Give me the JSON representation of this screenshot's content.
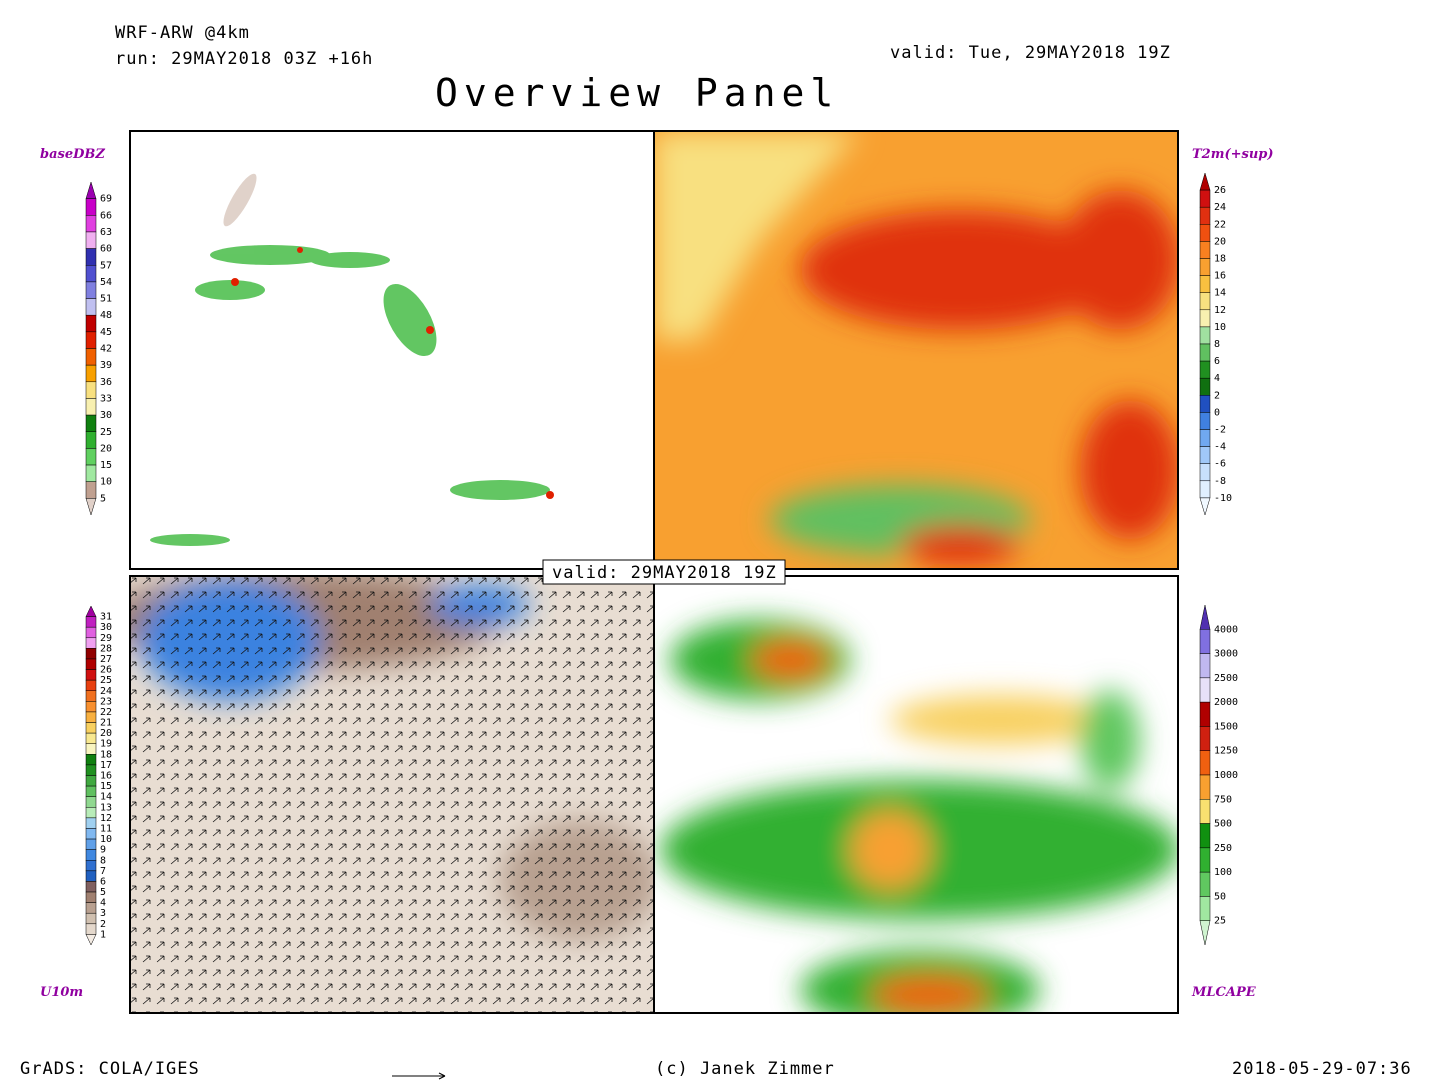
{
  "header": {
    "model": "WRF-ARW @4km",
    "run": "run: 29MAY2018 03Z +16h",
    "valid": "valid: Tue, 29MAY2018 19Z",
    "title": "Overview Panel"
  },
  "center_label": "valid: 29MAY2018 19Z",
  "panels": [
    {
      "label": "baseDBZ",
      "ticks": [
        69,
        66,
        63,
        60,
        57,
        54,
        51,
        48,
        45,
        42,
        39,
        36,
        33,
        30,
        25,
        20,
        15,
        10,
        5
      ],
      "colors": [
        "#9b00b0",
        "#c800c8",
        "#e040e0",
        "#f0b0f0",
        "#3030b0",
        "#5050d0",
        "#8080e0",
        "#c0c0f0",
        "#c00000",
        "#e02000",
        "#f06000",
        "#f8a000",
        "#f8e080",
        "#f8f0b0",
        "#108010",
        "#30b030",
        "#60d060",
        "#a0e8a0",
        "#c0a090",
        "#e0d0c8"
      ]
    },
    {
      "label": "T2m(+sup)",
      "ticks": [
        26,
        24,
        22,
        20,
        18,
        16,
        14,
        12,
        10,
        8,
        6,
        4,
        2,
        0,
        -2,
        -4,
        -6,
        -8,
        -10
      ],
      "colors": [
        "#b00000",
        "#d01010",
        "#e03010",
        "#f05010",
        "#f88020",
        "#f8a030",
        "#f8c040",
        "#f8e080",
        "#f8f0b0",
        "#a0e0a0",
        "#60c060",
        "#209020",
        "#107010",
        "#2050c0",
        "#4080e0",
        "#70a8f0",
        "#a0c8f8",
        "#c8e0fc",
        "#e0f0ff",
        "#f0f8ff"
      ]
    },
    {
      "label": "U10m",
      "ticks": [
        31,
        30,
        29,
        28,
        27,
        26,
        25,
        24,
        23,
        22,
        21,
        20,
        19,
        18,
        17,
        16,
        15,
        14,
        13,
        12,
        11,
        10,
        9,
        8,
        7,
        6,
        5,
        4,
        3,
        2,
        1
      ],
      "colors": [
        "#a000a0",
        "#c020c0",
        "#e060e0",
        "#f0a0f0",
        "#900000",
        "#b00000",
        "#d01010",
        "#e84010",
        "#f07020",
        "#f89030",
        "#f8b040",
        "#f8d060",
        "#f8e890",
        "#f8f4c0",
        "#108010",
        "#209020",
        "#40a840",
        "#60c060",
        "#90d890",
        "#b8ecb8",
        "#a0d0f0",
        "#80b8f0",
        "#60a0e8",
        "#4088e0",
        "#3070d0",
        "#2060c0",
        "#806060",
        "#a08070",
        "#b8a090",
        "#d0c0b0",
        "#e4d8cc",
        "#f4ece4"
      ]
    },
    {
      "label": "MLCAPE",
      "ticks": [
        4000,
        3000,
        2500,
        2000,
        1500,
        1250,
        1000,
        750,
        500,
        250,
        100,
        50,
        25
      ],
      "colors": [
        "#5030b0",
        "#8070e0",
        "#c0b8f0",
        "#e8e0f8",
        "#b00000",
        "#d02010",
        "#f06010",
        "#f8a030",
        "#f8e070",
        "#109010",
        "#30b030",
        "#60c860",
        "#a0e8a0",
        "#d0f4d0"
      ]
    }
  ],
  "footer": {
    "left": "GrADS: COLA/IGES",
    "center": "(c) Janek Zimmer",
    "right": "2018-05-29-07:36"
  }
}
